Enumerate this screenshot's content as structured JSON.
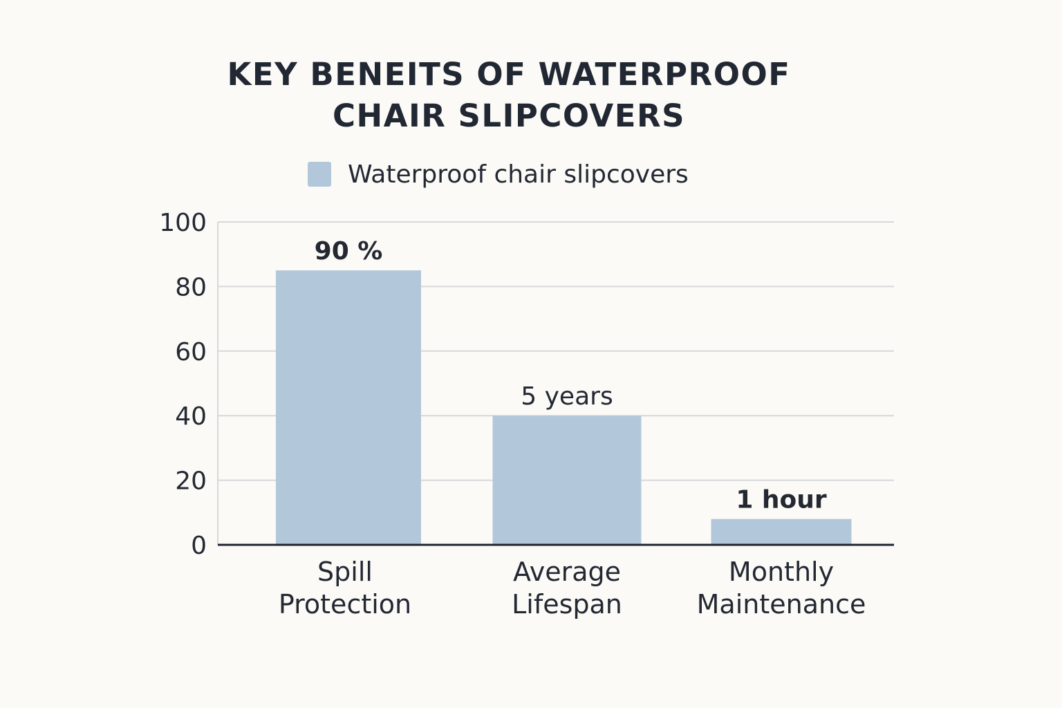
{
  "chart_data": {
    "type": "bar",
    "title_lines": [
      "KEY BENEITS OF WATERPROOF",
      "CHAIR SLIPCOVERS"
    ],
    "legend": [
      "Waterproof chair slipcovers"
    ],
    "categories": [
      [
        "Spill",
        "Protection"
      ],
      [
        "Average",
        "Lifespan"
      ],
      [
        "Monthly",
        "Maintenance"
      ]
    ],
    "series": [
      {
        "name": "Waterproof chair slipcovers",
        "values": [
          85,
          40,
          8
        ]
      }
    ],
    "data_labels": [
      "90 %",
      "5 years",
      "1 hour"
    ],
    "ylim": [
      0,
      100
    ],
    "yticks": [
      0,
      20,
      40,
      60,
      80,
      100
    ],
    "grid": true,
    "legend_position": "top-center"
  },
  "colors": {
    "bar": "#b2c8da",
    "grid": "#d6d8da",
    "axis": "#1f2430",
    "background": "#fbfaf6"
  }
}
